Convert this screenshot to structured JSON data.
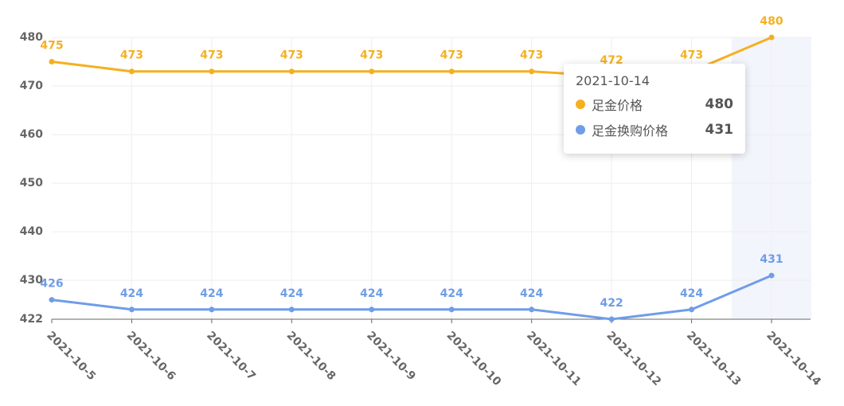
{
  "chart_data": {
    "type": "line",
    "categories": [
      "2021-10-5",
      "2021-10-6",
      "2021-10-7",
      "2021-10-8",
      "2021-10-9",
      "2021-10-10",
      "2021-10-11",
      "2021-10-12",
      "2021-10-13",
      "2021-10-14"
    ],
    "series": [
      {
        "name": "足金价格",
        "color": "#f5b020",
        "values": [
          475,
          473,
          473,
          473,
          473,
          473,
          473,
          472,
          473,
          480
        ]
      },
      {
        "name": "足金换购价格",
        "color": "#6f9de8",
        "values": [
          426,
          424,
          424,
          424,
          424,
          424,
          424,
          422,
          424,
          431
        ]
      }
    ],
    "ylim": [
      422,
      480
    ],
    "yticks": [
      422,
      430,
      440,
      450,
      460,
      470,
      480
    ],
    "grid": true
  }
}
